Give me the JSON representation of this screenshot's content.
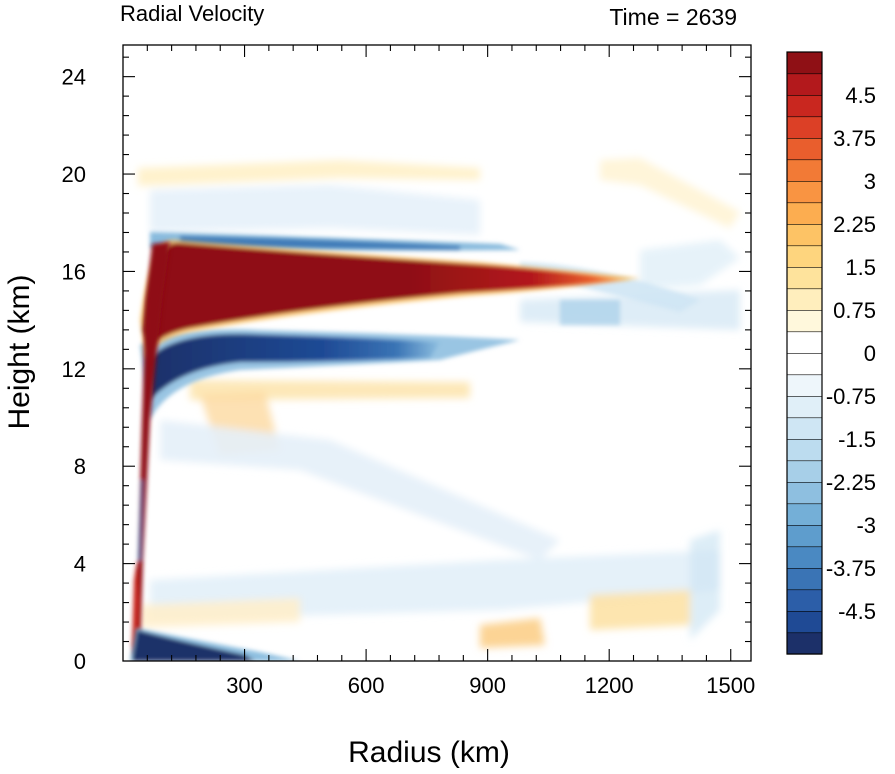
{
  "chart_data": {
    "type": "heatmap",
    "title": "Radial Velocity",
    "subtitle": "Time = 2639",
    "xlabel": "Radius (km)",
    "ylabel": "Height (km)",
    "xlim": [
      0,
      1550
    ],
    "ylim": [
      0,
      25.3
    ],
    "x_ticks": [
      300,
      600,
      900,
      1200,
      1500
    ],
    "y_ticks": [
      0,
      4,
      8,
      12,
      16,
      20,
      24
    ],
    "colorbar": {
      "min": -5.25,
      "max": 5.25,
      "step": 0.375,
      "labels": [
        "4.5",
        "3.75",
        "3",
        "2.25",
        "1.5",
        "0.75",
        "0",
        "-0.75",
        "-1.5",
        "-2.25",
        "-3",
        "-3.75",
        "-4.5"
      ],
      "label_values": [
        4.5,
        3.75,
        3,
        2.25,
        1.5,
        0.75,
        0,
        -0.75,
        -1.5,
        -2.25,
        -3,
        -3.75,
        -4.5
      ],
      "palette": [
        "#1c3069",
        "#1f4a95",
        "#2c5ea8",
        "#3a74b5",
        "#4a89c2",
        "#5e9dcd",
        "#74afd7",
        "#8ebfe0",
        "#a7cfe8",
        "#bcdcef",
        "#cfe6f4",
        "#e0eff8",
        "#eef6fb",
        "#ffffff",
        "#ffffff",
        "#fff8dc",
        "#ffeebd",
        "#fee39c",
        "#fed57e",
        "#fdc365",
        "#fcad50",
        "#f99442",
        "#f27a36",
        "#e95e2d",
        "#dc4026",
        "#c9271f",
        "#b3191c",
        "#8f1015"
      ]
    },
    "features": [
      {
        "name": "outflow jet",
        "sign": "positive",
        "r_start": 80,
        "r_end": 1270,
        "z_top": 17.2,
        "z_bottom": 14.0,
        "value": 5.5
      },
      {
        "name": "eyewall updraft",
        "sign": "positive",
        "r": 60,
        "z_range": [
          0.5,
          17
        ],
        "value": 5.5
      },
      {
        "name": "low-level inflow",
        "sign": "negative",
        "r_start": 30,
        "r_end": 330,
        "z_top": 1.4,
        "value": -5.5
      },
      {
        "name": "mid-level inflow",
        "sign": "negative",
        "r_start": 90,
        "r_end": 760,
        "z": 12.6,
        "value": -5.0
      },
      {
        "name": "upper inflow",
        "sign": "negative",
        "r_start": 150,
        "r_end": 700,
        "z": 17.3,
        "value": -2.8
      }
    ]
  }
}
